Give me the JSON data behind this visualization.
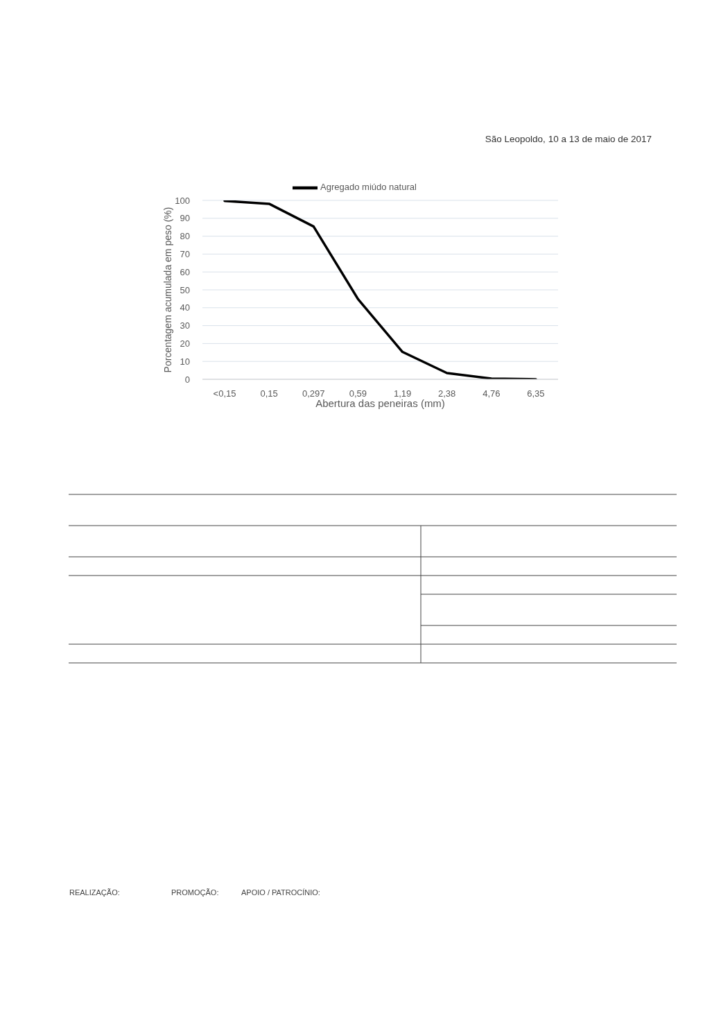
{
  "chart_data": {
    "type": "line",
    "xlabel": "Abertura das peneiras (mm)",
    "ylabel": "Porcentagem acumulada em peso (%)",
    "annotations": [
      "São Leopoldo, 10 a 13 de maio de 2017",
      "REALIZAÇÃO:",
      "PROMOÇÃO:",
      "APOIO / PATROCÍNIO:"
    ],
    "categories": [
      "<0,15",
      "0,15",
      "0,297",
      "0,59",
      "1,19",
      "2,38",
      "4,76",
      "6,35"
    ],
    "series": [
      {
        "name": "Agregado miúdo natural",
        "color": "#000000",
        "values": [
          99.7,
          98.1,
          85.4,
          44.8,
          15.3,
          3.5,
          0.4,
          0
        ]
      }
    ],
    "ylim": [
      0,
      100
    ],
    "yticks": [
      0,
      10,
      20,
      30,
      40,
      50,
      60,
      70,
      80,
      90,
      100
    ],
    "grid": "y",
    "legend": "top",
    "line_style": "solid"
  }
}
